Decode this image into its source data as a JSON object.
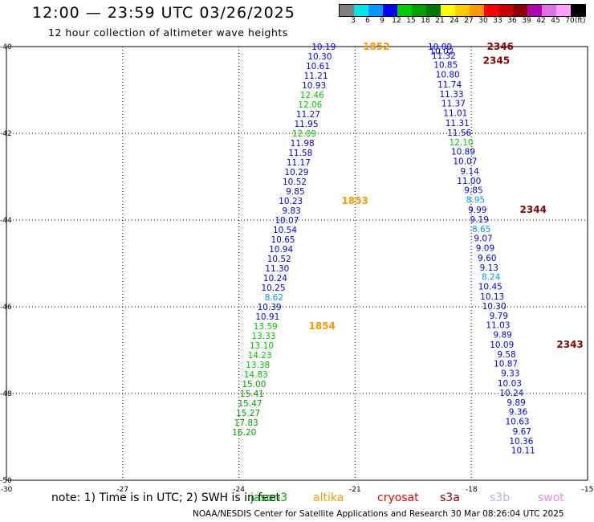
{
  "header": {
    "title": "12:00 — 23:59 UTC 03/26/2025",
    "subtitle": "12 hour collection of altimeter wave heights"
  },
  "legend": {
    "values": [
      "3",
      "6",
      "9",
      "12",
      "15",
      "18",
      "21",
      "24",
      "27",
      "30",
      "33",
      "36",
      "39",
      "42",
      "45",
      "70"
    ],
    "unit": "(ft)",
    "colors": [
      "#808080",
      "#00e5e5",
      "#0099ff",
      "#0000ff",
      "#00cc00",
      "#00a000",
      "#007800",
      "#ffff00",
      "#ffcc00",
      "#ff9900",
      "#ff0000",
      "#c80000",
      "#8b0000",
      "#b000b0",
      "#e070e0",
      "#ffa0ff",
      "#000000"
    ]
  },
  "footer": {
    "note": "note:  1) Time is in UTC; 2) SWH is in feet",
    "missions": [
      {
        "name": "jason3",
        "color": "#00aa00"
      },
      {
        "name": "altika",
        "color": "#ff9900"
      },
      {
        "name": "cryosat",
        "color": "#ff0000"
      },
      {
        "name": "s3a",
        "color": "#8b0000"
      },
      {
        "name": "s3b",
        "color": "#c0a8e8"
      },
      {
        "name": "swot",
        "color": "#ee88ee"
      }
    ],
    "credit": "NOAA/NESDIS Center for Satellite Applications and Research    30 Mar 08:26:04 UTC 2025"
  },
  "chart_data": {
    "type": "scatter",
    "title": "12:00 — 23:59 UTC 03/26/2025",
    "subtitle": "12 hour collection of altimeter wave heights",
    "xlabel": "",
    "ylabel": "",
    "xlim": [
      -30,
      -15
    ],
    "ylim": [
      -50,
      -40
    ],
    "x_ticks": [
      "-30",
      "-27",
      "-24",
      "-21",
      "-18",
      "-15"
    ],
    "y_ticks": [
      "-40",
      "-42",
      "-44",
      "-46",
      "-48",
      "-50"
    ],
    "grid": true,
    "legend": "top-right",
    "color_scale": {
      "values": [
        3,
        6,
        9,
        12,
        15,
        18,
        21,
        24,
        27,
        30,
        33,
        36,
        39,
        42,
        45,
        70
      ],
      "unit": "ft"
    },
    "tracks": [
      {
        "mission": "altika",
        "points": [
          {
            "lon": -21.5,
            "lat": -40.0,
            "swh": 10.19
          },
          {
            "lon": -21.6,
            "lat": -40.22,
            "swh": 10.3
          },
          {
            "lon": -21.65,
            "lat": -40.44,
            "swh": 10.61
          },
          {
            "lon": -21.7,
            "lat": -40.67,
            "swh": 11.21
          },
          {
            "lon": -21.75,
            "lat": -40.89,
            "swh": 10.93
          },
          {
            "lon": -21.8,
            "lat": -41.11,
            "swh": 12.46
          },
          {
            "lon": -21.85,
            "lat": -41.33,
            "swh": 12.06
          },
          {
            "lon": -21.9,
            "lat": -41.56,
            "swh": 11.27
          },
          {
            "lon": -21.95,
            "lat": -41.78,
            "swh": 11.95
          },
          {
            "lon": -22.0,
            "lat": -42.0,
            "swh": 12.09
          },
          {
            "lon": -22.05,
            "lat": -42.22,
            "swh": 11.98
          },
          {
            "lon": -22.1,
            "lat": -42.44,
            "swh": 11.58
          },
          {
            "lon": -22.15,
            "lat": -42.67,
            "swh": 11.17
          },
          {
            "lon": -22.2,
            "lat": -42.89,
            "swh": 10.29
          },
          {
            "lon": -22.25,
            "lat": -43.11,
            "swh": 10.52
          },
          {
            "lon": -22.3,
            "lat": -43.33,
            "swh": 9.85
          },
          {
            "lon": -22.35,
            "lat": -43.56,
            "swh": 10.23
          },
          {
            "lon": -22.4,
            "lat": -43.78,
            "swh": 9.83
          },
          {
            "lon": -22.45,
            "lat": -44.0,
            "swh": 10.07
          },
          {
            "lon": -22.5,
            "lat": -44.22,
            "swh": 10.54
          },
          {
            "lon": -22.55,
            "lat": -44.44,
            "swh": 10.65
          },
          {
            "lon": -22.6,
            "lat": -44.67,
            "swh": 10.94
          },
          {
            "lon": -22.65,
            "lat": -44.89,
            "swh": 10.52
          },
          {
            "lon": -22.7,
            "lat": -45.11,
            "swh": 11.3
          },
          {
            "lon": -22.75,
            "lat": -45.33,
            "swh": 10.24
          },
          {
            "lon": -22.8,
            "lat": -45.56,
            "swh": 10.25
          },
          {
            "lon": -22.85,
            "lat": -45.78,
            "swh": 8.62
          },
          {
            "lon": -22.9,
            "lat": -46.0,
            "swh": 10.39
          },
          {
            "lon": -22.95,
            "lat": -46.22,
            "swh": 10.91
          },
          {
            "lon": -23.0,
            "lat": -46.44,
            "swh": 13.59
          },
          {
            "lon": -23.05,
            "lat": -46.67,
            "swh": 13.33
          },
          {
            "lon": -23.1,
            "lat": -46.89,
            "swh": 13.1
          },
          {
            "lon": -23.15,
            "lat": -47.11,
            "swh": 14.23
          },
          {
            "lon": -23.2,
            "lat": -47.33,
            "swh": 13.38
          },
          {
            "lon": -23.25,
            "lat": -47.56,
            "swh": 14.83
          },
          {
            "lon": -23.3,
            "lat": -47.78,
            "swh": 15.0
          },
          {
            "lon": -23.35,
            "lat": -48.0,
            "swh": 15.41
          },
          {
            "lon": -23.4,
            "lat": -48.22,
            "swh": 15.47
          },
          {
            "lon": -23.45,
            "lat": -48.44,
            "swh": 15.27
          },
          {
            "lon": -23.5,
            "lat": -48.67,
            "swh": 17.83
          },
          {
            "lon": -23.55,
            "lat": -48.89,
            "swh": 16.2
          }
        ]
      },
      {
        "mission": "s3a",
        "points": [
          {
            "lon": -18.5,
            "lat": -40.0,
            "swh": 10.0
          },
          {
            "lon": -18.45,
            "lat": -40.1,
            "swh": 10.02
          },
          {
            "lon": -18.4,
            "lat": -40.2,
            "swh": 11.32
          },
          {
            "lon": -18.35,
            "lat": -40.42,
            "swh": 10.85
          },
          {
            "lon": -18.3,
            "lat": -40.64,
            "swh": 10.8
          },
          {
            "lon": -18.25,
            "lat": -40.87,
            "swh": 11.74
          },
          {
            "lon": -18.2,
            "lat": -41.09,
            "swh": 11.33
          },
          {
            "lon": -18.15,
            "lat": -41.31,
            "swh": 11.37
          },
          {
            "lon": -18.1,
            "lat": -41.53,
            "swh": 11.01
          },
          {
            "lon": -18.05,
            "lat": -41.76,
            "swh": 11.31
          },
          {
            "lon": -18.0,
            "lat": -41.98,
            "swh": 11.56
          },
          {
            "lon": -17.95,
            "lat": -42.2,
            "swh": 12.1
          },
          {
            "lon": -17.9,
            "lat": -42.42,
            "swh": 10.89
          },
          {
            "lon": -17.85,
            "lat": -42.64,
            "swh": 10.07
          },
          {
            "lon": -17.8,
            "lat": -42.87,
            "swh": 9.14
          },
          {
            "lon": -17.75,
            "lat": -43.09,
            "swh": 11.0
          },
          {
            "lon": -17.7,
            "lat": -43.31,
            "swh": 9.85
          },
          {
            "lon": -17.65,
            "lat": -43.53,
            "swh": 8.95
          },
          {
            "lon": -17.6,
            "lat": -43.76,
            "swh": 9.99
          },
          {
            "lon": -17.55,
            "lat": -43.98,
            "swh": 9.19
          },
          {
            "lon": -17.5,
            "lat": -44.2,
            "swh": 8.65
          },
          {
            "lon": -17.45,
            "lat": -44.42,
            "swh": 9.07
          },
          {
            "lon": -17.4,
            "lat": -44.64,
            "swh": 9.09
          },
          {
            "lon": -17.35,
            "lat": -44.87,
            "swh": 9.6
          },
          {
            "lon": -17.3,
            "lat": -45.09,
            "swh": 9.13
          },
          {
            "lon": -17.25,
            "lat": -45.31,
            "swh": 8.24
          },
          {
            "lon": -17.2,
            "lat": -45.53,
            "swh": 10.45
          },
          {
            "lon": -17.15,
            "lat": -45.76,
            "swh": 10.13
          },
          {
            "lon": -17.1,
            "lat": -45.98,
            "swh": 10.3
          },
          {
            "lon": -17.05,
            "lat": -46.2,
            "swh": 9.79
          },
          {
            "lon": -17.0,
            "lat": -46.42,
            "swh": 11.03
          },
          {
            "lon": -16.95,
            "lat": -46.64,
            "swh": 9.89
          },
          {
            "lon": -16.9,
            "lat": -46.87,
            "swh": 10.09
          },
          {
            "lon": -16.85,
            "lat": -47.09,
            "swh": 9.58
          },
          {
            "lon": -16.8,
            "lat": -47.31,
            "swh": 10.87
          },
          {
            "lon": -16.75,
            "lat": -47.53,
            "swh": 9.33
          },
          {
            "lon": -16.7,
            "lat": -47.76,
            "swh": 10.03
          },
          {
            "lon": -16.65,
            "lat": -47.98,
            "swh": 10.24
          },
          {
            "lon": -16.6,
            "lat": -48.2,
            "swh": 9.89
          },
          {
            "lon": -16.55,
            "lat": -48.42,
            "swh": 9.36
          },
          {
            "lon": -16.5,
            "lat": -48.64,
            "swh": 10.63
          },
          {
            "lon": -16.45,
            "lat": -48.87,
            "swh": 9.67
          },
          {
            "lon": -16.4,
            "lat": -49.09,
            "swh": 10.36
          },
          {
            "lon": -16.35,
            "lat": -49.31,
            "swh": 10.11
          }
        ]
      }
    ],
    "time_labels": [
      {
        "text": "1852",
        "mission": "altika",
        "lon": -20.8,
        "lat": -40.0
      },
      {
        "text": "1853",
        "mission": "altika",
        "lon": -21.35,
        "lat": -43.56
      },
      {
        "text": "1854",
        "mission": "altika",
        "lon": -22.2,
        "lat": -46.44
      },
      {
        "text": "2346",
        "mission": "s3a",
        "lon": -17.6,
        "lat": -40.0
      },
      {
        "text": "2345",
        "mission": "s3a",
        "lon": -17.7,
        "lat": -40.32
      },
      {
        "text": "2344",
        "mission": "s3a",
        "lon": -16.75,
        "lat": -43.76
      },
      {
        "text": "2343",
        "mission": "s3a",
        "lon": -15.8,
        "lat": -46.87
      }
    ]
  }
}
